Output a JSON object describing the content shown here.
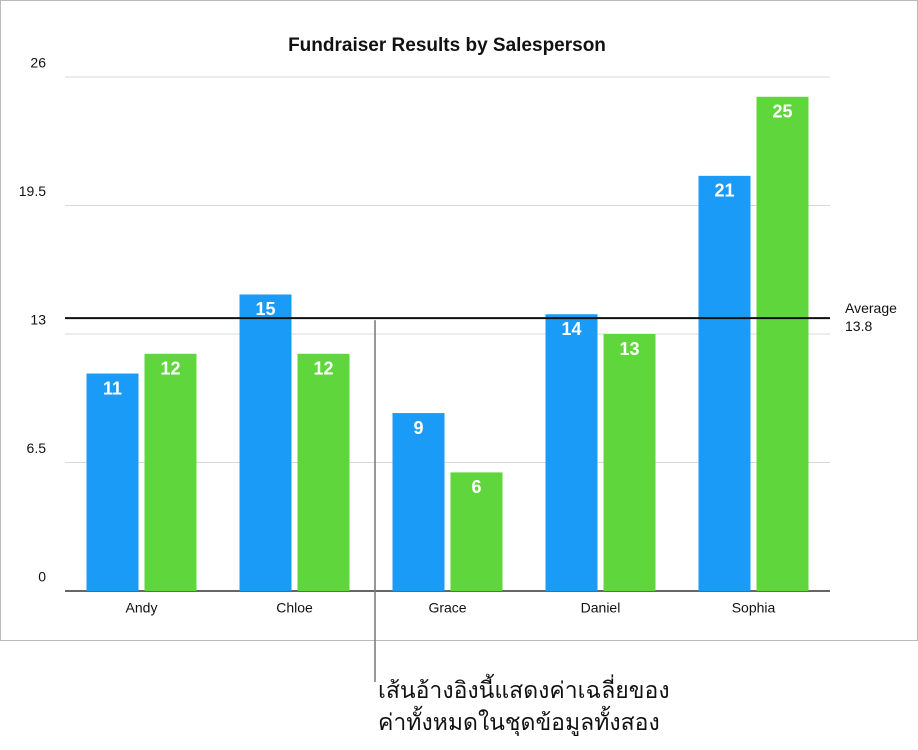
{
  "chart_data": {
    "type": "bar",
    "title": "Fundraiser Results by Salesperson",
    "categories": [
      "Andy",
      "Chloe",
      "Grace",
      "Daniel",
      "Sophia"
    ],
    "series": [
      {
        "color": "#1a9bf8",
        "values": [
          11,
          15,
          9,
          14,
          21
        ]
      },
      {
        "color": "#5fd63c",
        "values": [
          12,
          12,
          6,
          13,
          25
        ]
      }
    ],
    "ylim": [
      0,
      26
    ],
    "yticks": [
      0,
      6.5,
      13,
      19.5,
      26
    ],
    "grid": true,
    "reference_line": {
      "label": "Average",
      "value": 13.8
    },
    "annotation": [
      "เส้นอ้างอิงนี้แสดงค่าเฉลี่ยของ",
      "ค่าทั้งหมดในชุดข้อมูลทั้งสอง"
    ]
  }
}
